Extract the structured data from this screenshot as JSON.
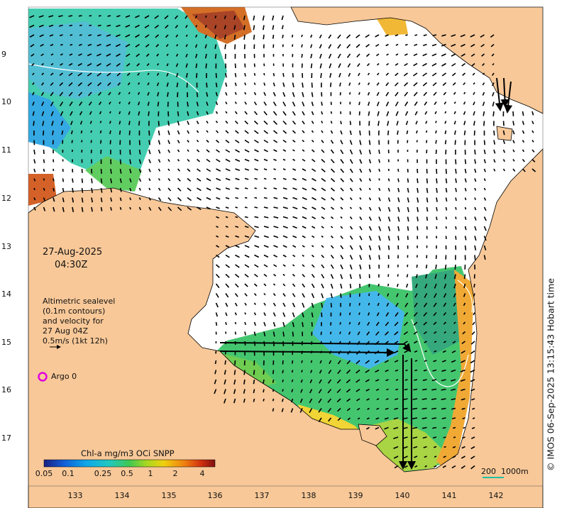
{
  "map": {
    "title_time": {
      "date": "27-Aug-2025",
      "time": "04:30Z"
    },
    "legend_text": [
      "Altimetric sealevel",
      "(0.1m contours)",
      "and velocity for",
      "27 Aug 04Z",
      "0.5m/s (1kt 12h)"
    ],
    "argo_label": "Argo 0",
    "credit": "© IMOS 06-Sep-2025 13:15:43 Hobart time",
    "scale_bar": {
      "label_km": "200",
      "label_depth": "1000m"
    },
    "colorbar": {
      "title": "Chl-a mg/m3 OCi SNPP",
      "ticks": [
        "0.05",
        "0.1",
        "0.25",
        "0.5",
        "1",
        "2",
        "4"
      ]
    },
    "lat_ticks": [
      "9",
      "10",
      "11",
      "12",
      "13",
      "14",
      "15",
      "16",
      "17"
    ],
    "lon_ticks": [
      "133",
      "134",
      "135",
      "136",
      "137",
      "138",
      "139",
      "140",
      "141",
      "142"
    ],
    "colors": {
      "land": "#f8c898",
      "ocean": "#ffffff",
      "argo": "#e000e0",
      "scale_bar": "#20c0a0"
    }
  }
}
